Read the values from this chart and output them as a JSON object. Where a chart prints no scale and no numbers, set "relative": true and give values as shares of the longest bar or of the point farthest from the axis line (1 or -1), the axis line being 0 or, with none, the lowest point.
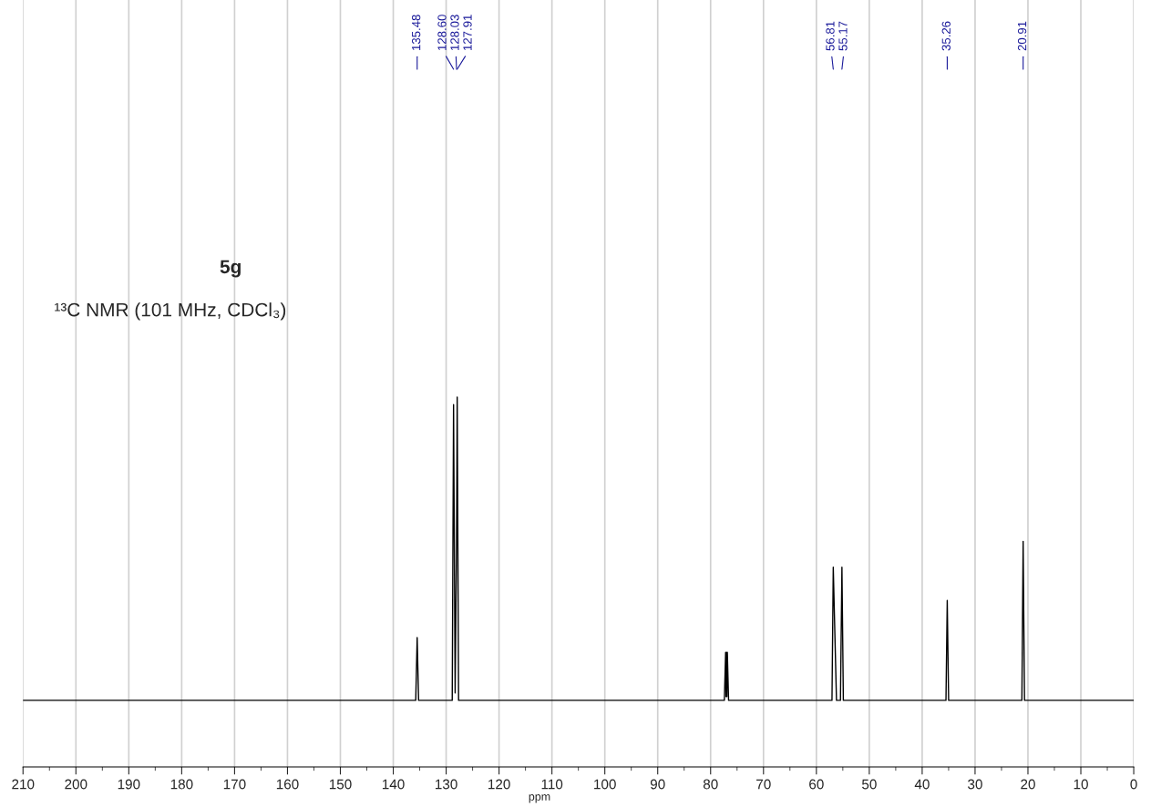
{
  "chart_data": {
    "type": "line",
    "title": "5g",
    "subtitle": "¹³C NMR (101 MHz, CDCl₃)",
    "xlabel": "ppm",
    "relative": true,
    "xlim": [
      210,
      0
    ],
    "xticks": [
      210,
      200,
      190,
      180,
      170,
      160,
      150,
      140,
      130,
      120,
      110,
      100,
      90,
      80,
      70,
      60,
      50,
      40,
      30,
      20,
      10,
      0
    ],
    "grid": "x",
    "marker": "none",
    "line_style": "solid",
    "series": [
      {
        "color": "#000000",
        "x": [
          210,
          135.75,
          135.48,
          135.21,
          128.85,
          128.6,
          128.3,
          128.03,
          127.91,
          127.65,
          77.4,
          77.16,
          77.08,
          77.0,
          76.92,
          76.84,
          76.6,
          57.05,
          56.81,
          56.2,
          55.45,
          55.17,
          54.9,
          35.5,
          35.26,
          35.0,
          21.15,
          20.91,
          20.65,
          0
        ],
        "values": [
          0.18,
          0.18,
          0.35,
          0.18,
          0.18,
          0.98,
          0.2,
          0.62,
          1.0,
          0.18,
          0.18,
          0.31,
          0.19,
          0.31,
          0.19,
          0.31,
          0.18,
          0.18,
          0.54,
          0.18,
          0.18,
          0.54,
          0.18,
          0.18,
          0.45,
          0.18,
          0.18,
          0.61,
          0.18,
          0.18
        ]
      }
    ],
    "annotations": [
      {
        "text": "135.48",
        "x": 135.48
      },
      {
        "text": "128.60",
        "x": 128.6
      },
      {
        "text": "128.03",
        "x": 128.03
      },
      {
        "text": "127.91",
        "x": 127.91
      },
      {
        "text": "56.81",
        "x": 56.81
      },
      {
        "text": "55.17",
        "x": 55.17
      },
      {
        "text": "35.26",
        "x": 35.26
      },
      {
        "text": "20.91",
        "x": 20.91
      }
    ]
  }
}
